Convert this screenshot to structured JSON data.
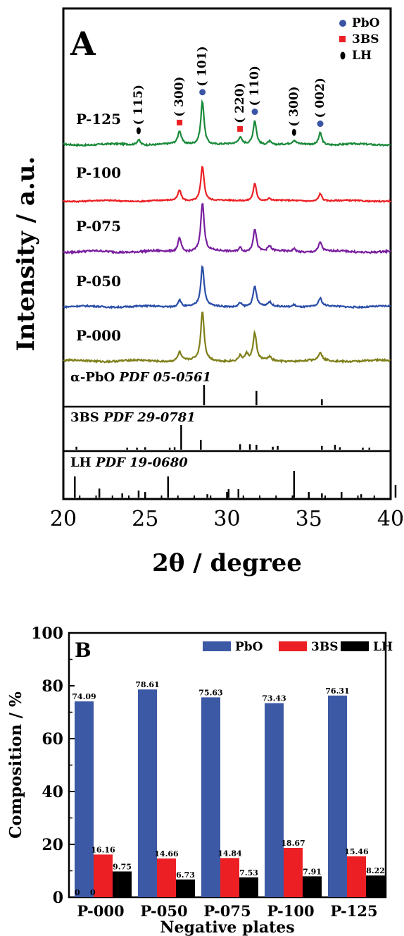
{
  "chart_data": [
    {
      "type": "line",
      "panel_label": "A",
      "xlabel": "2θ / degree",
      "ylabel": "Intensity / a.u.",
      "xlim": [
        20,
        40
      ],
      "x_ticks": [
        "20",
        "25",
        "30",
        "35",
        "40"
      ],
      "legend": [
        {
          "label": "PbO",
          "color": "#3a55a4",
          "marker": "circle"
        },
        {
          "label": "3BS",
          "color": "#ec2024",
          "marker": "square"
        },
        {
          "label": "LH",
          "color": "#000000",
          "marker": "ellipse"
        }
      ],
      "series": [
        {
          "name": "P-125",
          "color": "#1a8a3a",
          "peaks": [
            [
              24.6,
              0.12
            ],
            [
              27.1,
              0.3
            ],
            [
              28.5,
              1.0
            ],
            [
              30.8,
              0.15
            ],
            [
              31.7,
              0.55
            ],
            [
              32.6,
              0.08
            ],
            [
              34.1,
              0.08
            ],
            [
              35.7,
              0.28
            ]
          ]
        },
        {
          "name": "P-100",
          "color": "#ec2024",
          "peaks": [
            [
              27.1,
              0.3
            ],
            [
              28.5,
              1.0
            ],
            [
              31.7,
              0.5
            ],
            [
              32.6,
              0.07
            ],
            [
              35.7,
              0.22
            ]
          ]
        },
        {
          "name": "P-075",
          "color": "#7a1fa0",
          "peaks": [
            [
              27.1,
              0.28
            ],
            [
              28.5,
              1.0
            ],
            [
              30.8,
              0.09
            ],
            [
              31.7,
              0.47
            ],
            [
              32.6,
              0.1
            ],
            [
              34.1,
              0.06
            ],
            [
              35.7,
              0.2
            ]
          ]
        },
        {
          "name": "P-050",
          "color": "#2a4ea8",
          "peaks": [
            [
              27.1,
              0.18
            ],
            [
              28.5,
              1.0
            ],
            [
              30.8,
              0.1
            ],
            [
              31.7,
              0.5
            ],
            [
              32.6,
              0.1
            ],
            [
              34.1,
              0.06
            ],
            [
              35.7,
              0.2
            ]
          ]
        },
        {
          "name": "P-000",
          "color": "#7f7f1a",
          "peaks": [
            [
              27.1,
              0.18
            ],
            [
              28.5,
              1.0
            ],
            [
              30.8,
              0.1
            ],
            [
              31.2,
              0.12
            ],
            [
              31.7,
              0.55
            ],
            [
              32.6,
              0.08
            ],
            [
              35.7,
              0.17
            ]
          ]
        }
      ],
      "peak_annotations": [
        {
          "label": "115",
          "x": 24.6,
          "phase": "LH"
        },
        {
          "label": "300",
          "x": 27.1,
          "phase": "3BS"
        },
        {
          "label": "101",
          "x": 28.5,
          "phase": "PbO"
        },
        {
          "label": "220",
          "x": 30.8,
          "phase": "3BS"
        },
        {
          "label": "110",
          "x": 31.7,
          "phase": "PbO"
        },
        {
          "label": "300",
          "x": 34.1,
          "phase": "LH"
        },
        {
          "label": "002",
          "x": 35.7,
          "phase": "PbO"
        }
      ],
      "references": [
        {
          "name": "α-PbO",
          "pdf": "PDF 05-0561",
          "lines": [
            [
              28.6,
              1.0
            ],
            [
              31.8,
              0.7
            ],
            [
              35.8,
              0.3
            ]
          ]
        },
        {
          "name": "3BS",
          "pdf": "PDF 29-0781",
          "lines": [
            [
              20.8,
              0.12
            ],
            [
              23.9,
              0.08
            ],
            [
              24.5,
              0.08
            ],
            [
              25.0,
              0.1
            ],
            [
              26.5,
              0.08
            ],
            [
              26.8,
              0.1
            ],
            [
              27.2,
              1.0
            ],
            [
              28.4,
              0.4
            ],
            [
              30.8,
              0.22
            ],
            [
              31.4,
              0.22
            ],
            [
              31.8,
              0.2
            ],
            [
              32.8,
              0.12
            ],
            [
              33.1,
              0.15
            ],
            [
              35.8,
              0.15
            ],
            [
              36.6,
              0.2
            ],
            [
              36.9,
              0.1
            ],
            [
              38.3,
              0.08
            ],
            [
              38.7,
              0.08
            ]
          ]
        },
        {
          "name": "LH",
          "pdf": "PDF 19-0680",
          "lines": [
            [
              20.7,
              0.75
            ],
            [
              22.2,
              0.32
            ],
            [
              23.6,
              0.15
            ],
            [
              24.6,
              0.25
            ],
            [
              26.4,
              0.75
            ],
            [
              28.8,
              0.12
            ],
            [
              30.1,
              0.3
            ],
            [
              30.7,
              0.3
            ],
            [
              34.1,
              0.95
            ],
            [
              35.8,
              0.15
            ],
            [
              37.0,
              0.2
            ],
            [
              38.2,
              0.12
            ],
            [
              40.3,
              0.45
            ]
          ]
        }
      ]
    },
    {
      "type": "bar",
      "panel_label": "B",
      "xlabel": "Negative plates",
      "ylabel": "Composition  / %",
      "ylim": [
        0,
        100
      ],
      "y_ticks": [
        0,
        20,
        40,
        60,
        80,
        100
      ],
      "categories": [
        "P-000",
        "P-050",
        "P-075",
        "P-100",
        "P-125"
      ],
      "series": [
        {
          "name": "PbO",
          "color": "#3c59a6",
          "values": [
            74.09,
            78.61,
            75.63,
            73.43,
            76.31
          ],
          "labels": [
            "74.09",
            "78.61",
            "75.63",
            "73.43",
            "76.31"
          ]
        },
        {
          "name": "3BS",
          "color": "#ec2024",
          "values": [
            16.16,
            14.66,
            14.84,
            18.67,
            15.46
          ],
          "labels": [
            "16.16",
            "14.66",
            "14.84",
            "18.67",
            "15.46"
          ]
        },
        {
          "name": "LH",
          "color": "#000000",
          "values": [
            9.75,
            6.73,
            7.53,
            7.91,
            8.22
          ],
          "labels": [
            "9.75",
            "6.73",
            "7.53",
            "7.91",
            "8.22"
          ]
        }
      ],
      "zero_labels": [
        "0",
        "0"
      ],
      "legend_position": "top-right"
    }
  ]
}
